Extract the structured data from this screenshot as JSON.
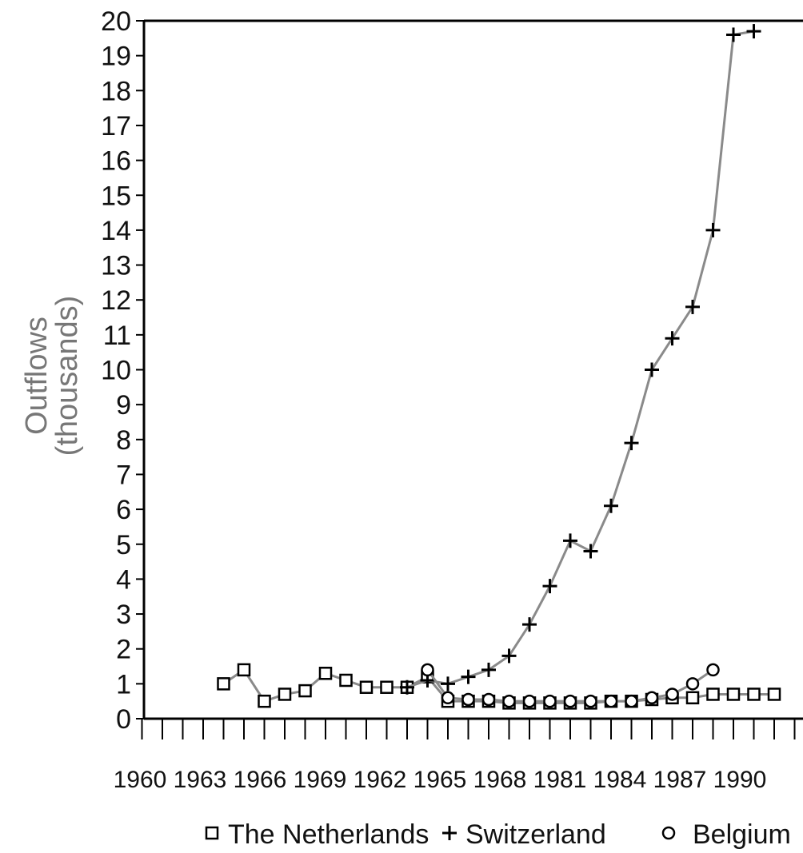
{
  "chart_data": {
    "type": "line",
    "title": "",
    "xlabel": "",
    "ylabel": "Outflows",
    "ylabel_line2": "(thousands)",
    "xlim": [
      1950,
      1992
    ],
    "ylim": [
      0,
      20
    ],
    "y_tick_labels": [
      "0",
      "1",
      "2",
      "3",
      "4",
      "5",
      "6",
      "7",
      "8",
      "9",
      "10",
      "11",
      "12",
      "13",
      "14",
      "15",
      "16",
      "17",
      "18",
      "19",
      "20"
    ],
    "x_tick_labels": [
      "1960",
      "1963",
      "1966",
      "1969",
      "1962",
      "1965",
      "1968",
      "1981",
      "1984",
      "1987",
      "1990"
    ],
    "grid": false,
    "legend_position": "bottom",
    "series": [
      {
        "name": "The Netherlands",
        "marker": "square",
        "color": "#000000",
        "points": [
          [
            1955,
            1.0
          ],
          [
            1956,
            1.4
          ],
          [
            1957,
            0.5
          ],
          [
            1958,
            0.7
          ],
          [
            1959,
            0.8
          ],
          [
            1960,
            1.3
          ],
          [
            1961,
            1.1
          ],
          [
            1962,
            0.9
          ],
          [
            1963,
            0.9
          ],
          [
            1964,
            0.9
          ],
          [
            1965,
            1.2
          ],
          [
            1966,
            0.5
          ],
          [
            1967,
            0.5
          ],
          [
            1968,
            0.5
          ],
          [
            1969,
            0.45
          ],
          [
            1970,
            0.45
          ],
          [
            1971,
            0.45
          ],
          [
            1972,
            0.45
          ],
          [
            1973,
            0.45
          ],
          [
            1974,
            0.5
          ],
          [
            1975,
            0.5
          ],
          [
            1976,
            0.55
          ],
          [
            1977,
            0.6
          ],
          [
            1978,
            0.6
          ],
          [
            1979,
            0.7
          ],
          [
            1980,
            0.7
          ],
          [
            1981,
            0.7
          ],
          [
            1982,
            0.7
          ]
        ]
      },
      {
        "name": "Switzerland",
        "marker": "plus",
        "color": "#000000",
        "points": [
          [
            1964,
            0.9
          ],
          [
            1965,
            1.1
          ],
          [
            1966,
            1.0
          ],
          [
            1967,
            1.2
          ],
          [
            1968,
            1.4
          ],
          [
            1969,
            1.8
          ],
          [
            1970,
            2.7
          ],
          [
            1971,
            3.8
          ],
          [
            1972,
            5.1
          ],
          [
            1973,
            4.8
          ],
          [
            1974,
            6.1
          ],
          [
            1975,
            7.9
          ],
          [
            1976,
            10.0
          ],
          [
            1977,
            10.9
          ],
          [
            1978,
            11.8
          ],
          [
            1979,
            14.0
          ],
          [
            1980,
            19.6
          ],
          [
            1981,
            19.7
          ]
        ]
      },
      {
        "name": "Belgium",
        "marker": "circle",
        "color": "#000000",
        "points": [
          [
            1965,
            1.4
          ],
          [
            1966,
            0.6
          ],
          [
            1967,
            0.55
          ],
          [
            1968,
            0.55
          ],
          [
            1969,
            0.5
          ],
          [
            1970,
            0.5
          ],
          [
            1971,
            0.5
          ],
          [
            1972,
            0.5
          ],
          [
            1973,
            0.5
          ],
          [
            1974,
            0.5
          ],
          [
            1975,
            0.5
          ],
          [
            1976,
            0.6
          ],
          [
            1977,
            0.7
          ],
          [
            1978,
            1.0
          ],
          [
            1979,
            1.4
          ]
        ]
      }
    ]
  },
  "legend": {
    "items": [
      {
        "label": "The Netherlands",
        "icon": "square-marker-icon"
      },
      {
        "label": "Switzerland",
        "icon": "plus-marker-icon"
      },
      {
        "label": "Belgium",
        "icon": "circle-marker-icon"
      }
    ]
  }
}
